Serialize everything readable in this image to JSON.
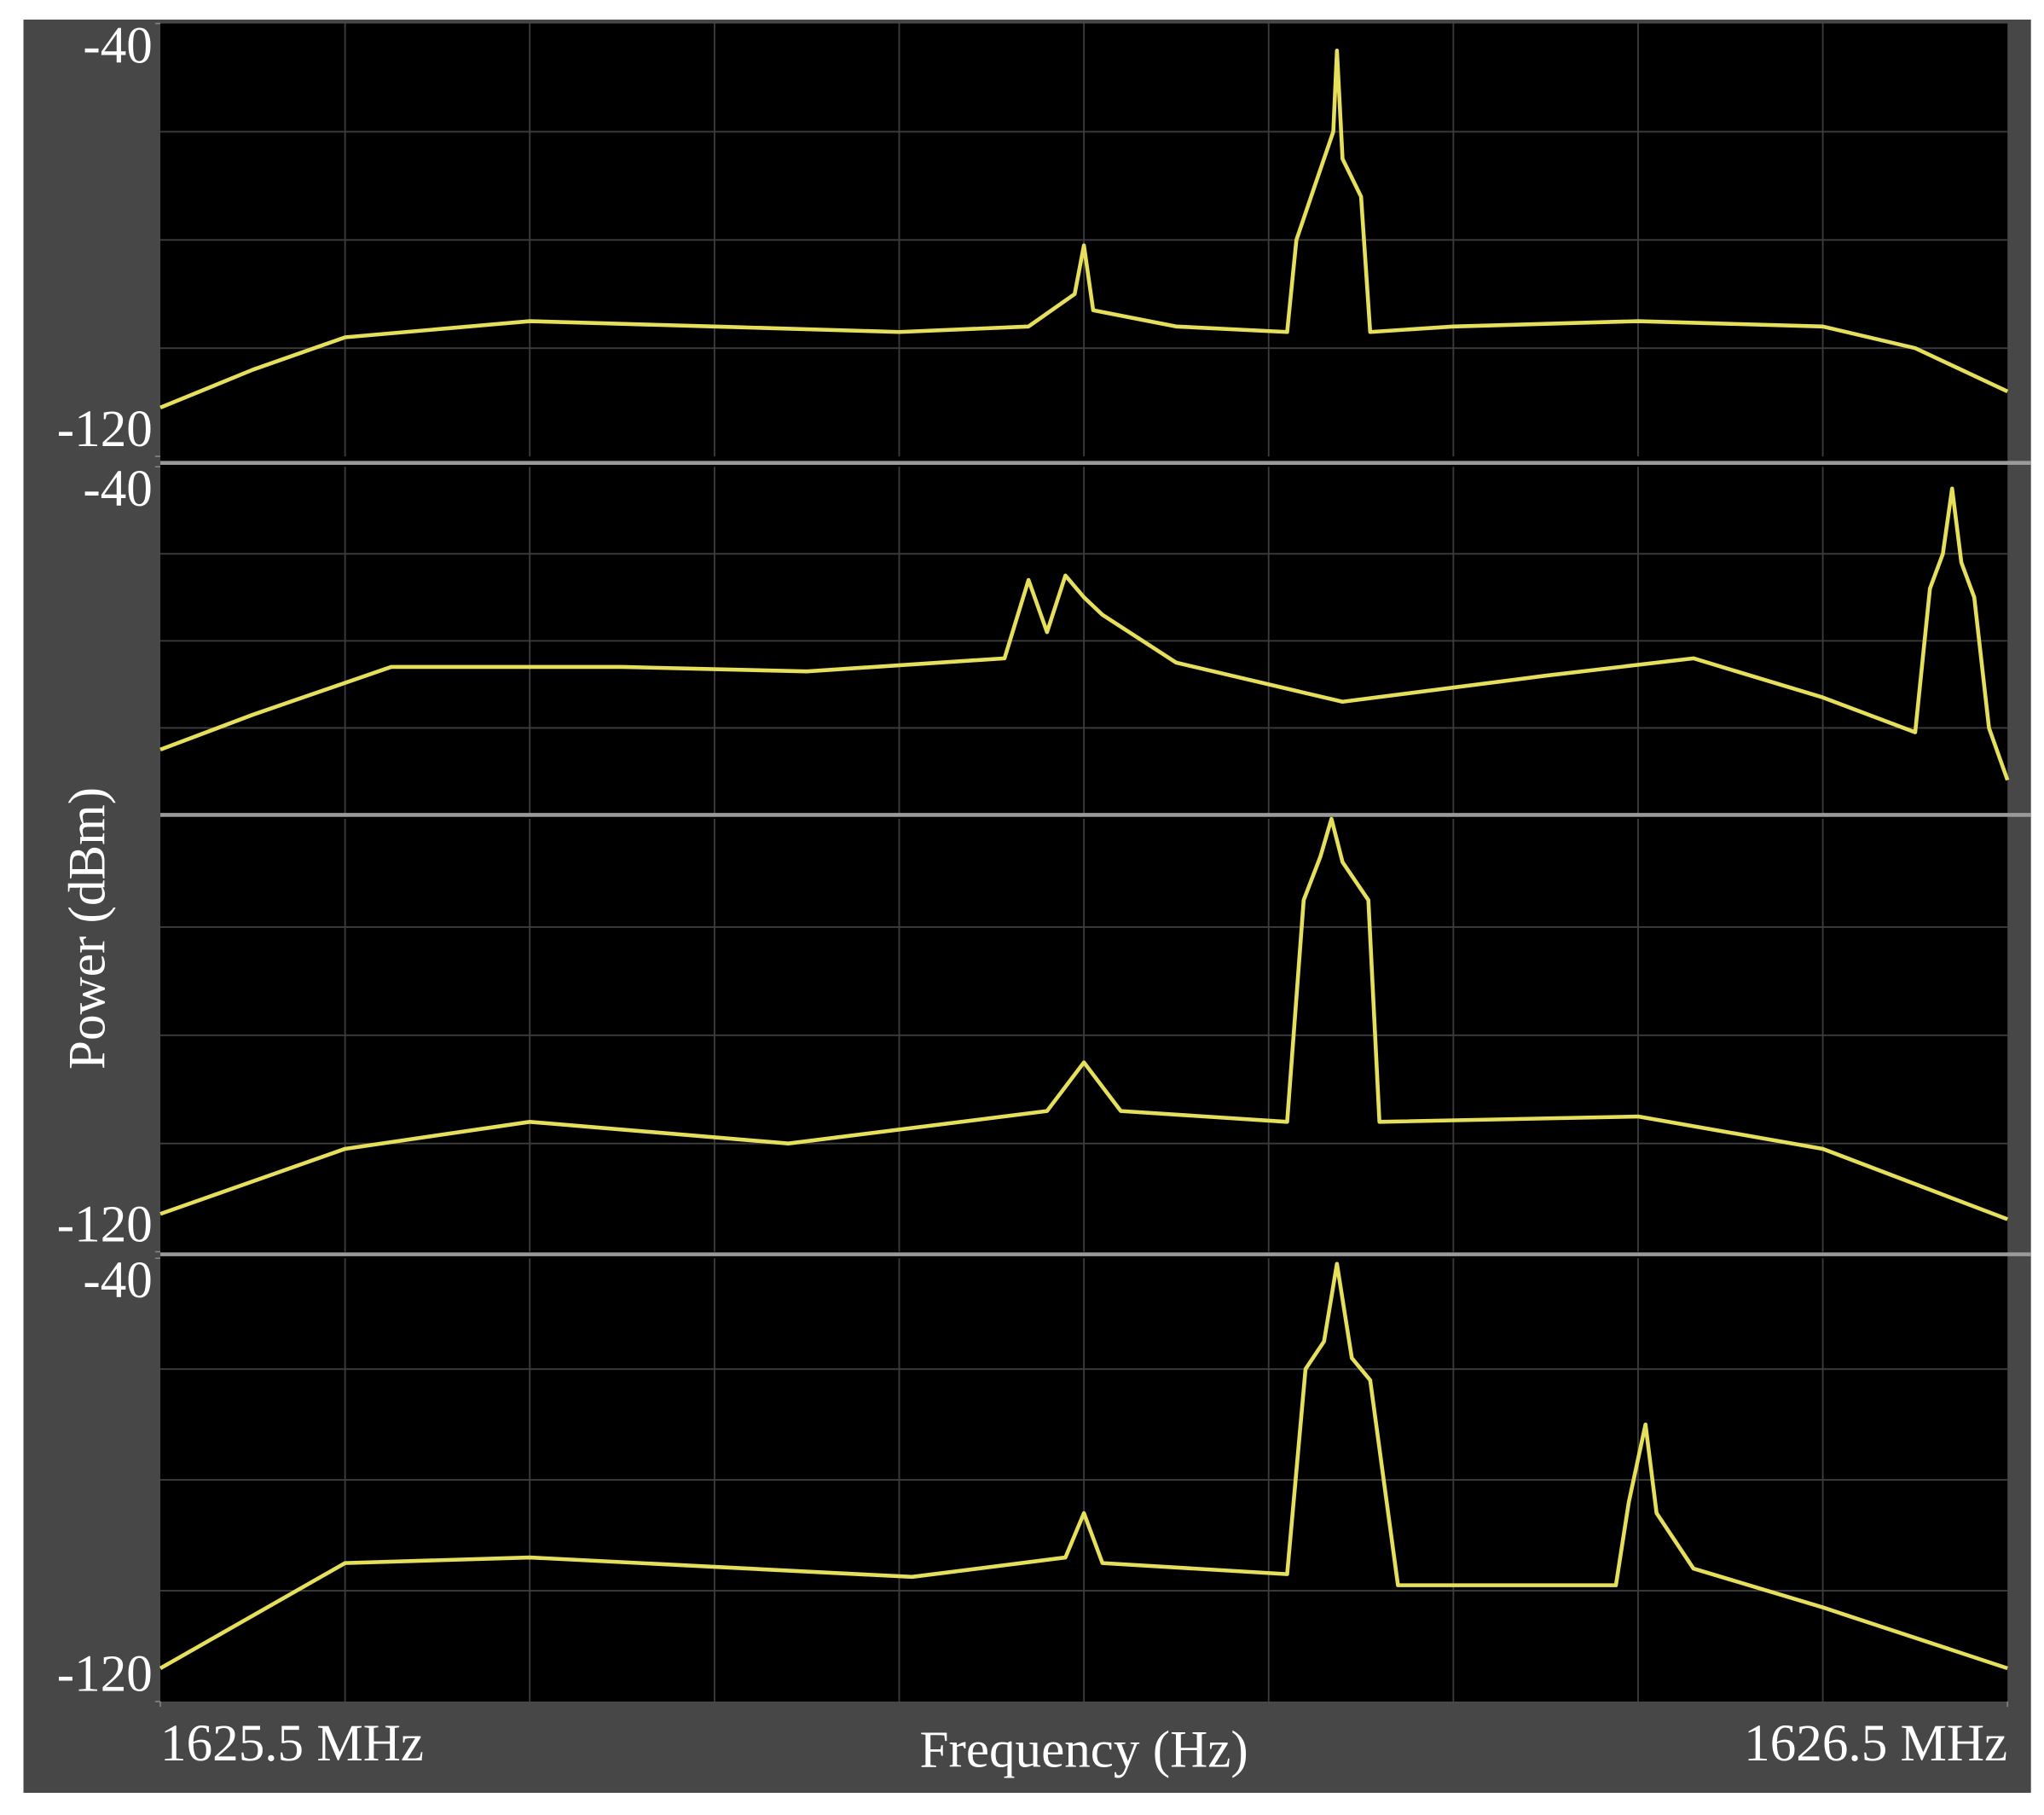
{
  "chart_data": [
    {
      "type": "line",
      "xlim": [
        1625.5,
        1626.5
      ],
      "ylim": [
        -120,
        -40
      ],
      "yticks": [
        -120,
        -40
      ],
      "ylabel": "Power (dBm)",
      "x": [
        1625.5,
        1625.55,
        1625.6,
        1625.7,
        1625.8,
        1625.9,
        1625.97,
        1625.995,
        1626.0,
        1626.005,
        1626.05,
        1626.11,
        1626.115,
        1626.125,
        1626.135,
        1626.137,
        1626.14,
        1626.15,
        1626.155,
        1626.2,
        1626.3,
        1626.4,
        1626.45,
        1626.5
      ],
      "series": [
        {
          "color": "#e6df5c",
          "values": [
            -111,
            -104,
            -98,
            -95,
            -96,
            -97,
            -96,
            -90,
            -81,
            -93,
            -96,
            -97,
            -80,
            -70,
            -60,
            -45,
            -65,
            -72,
            -97,
            -96,
            -95,
            -96,
            -100,
            -108
          ]
        }
      ]
    },
    {
      "type": "line",
      "xlim": [
        1625.5,
        1626.5
      ],
      "ylim": [
        -120,
        -40
      ],
      "yticks": [
        -40
      ],
      "x": [
        1625.5,
        1625.55,
        1625.625,
        1625.75,
        1625.85,
        1625.957,
        1625.97,
        1625.98,
        1625.99,
        1626.0,
        1626.01,
        1626.05,
        1626.14,
        1626.25,
        1626.33,
        1626.4,
        1626.45,
        1626.458,
        1626.465,
        1626.47,
        1626.475,
        1626.482,
        1626.49,
        1626.5
      ],
      "series": [
        {
          "color": "#e6df5c",
          "values": [
            -105,
            -97,
            -86,
            -86,
            -87,
            -84,
            -66,
            -78,
            -65,
            -70,
            -74,
            -85,
            -94,
            -88,
            -84,
            -93,
            -101,
            -68,
            -60,
            -45,
            -62,
            -70,
            -100,
            -112
          ]
        }
      ]
    },
    {
      "type": "line",
      "xlim": [
        1625.5,
        1626.5
      ],
      "ylim": [
        -120,
        -40
      ],
      "yticks": [
        -120
      ],
      "x": [
        1625.5,
        1625.6,
        1625.7,
        1625.84,
        1625.98,
        1626.0,
        1626.02,
        1626.11,
        1626.119,
        1626.128,
        1626.134,
        1626.14,
        1626.154,
        1626.16,
        1626.3,
        1626.4,
        1626.5
      ],
      "series": [
        {
          "color": "#e6df5c",
          "values": [
            -113,
            -101,
            -96,
            -100,
            -94,
            -85,
            -94,
            -96,
            -55,
            -47,
            -40,
            -48,
            -55,
            -96,
            -95,
            -101,
            -114
          ]
        }
      ]
    },
    {
      "type": "line",
      "xlim": [
        1625.5,
        1626.5
      ],
      "ylim": [
        -120,
        -40
      ],
      "yticks": [
        -120,
        -40
      ],
      "xticks": [
        {
          "value": 1625.5,
          "label": "1625.5 MHz"
        },
        {
          "value": 1626.5,
          "label": "1626.5 MHz"
        }
      ],
      "xlabel": "Frequency (Hz)",
      "x": [
        1625.5,
        1625.6,
        1625.7,
        1625.907,
        1625.99,
        1626.0,
        1626.01,
        1626.11,
        1626.12,
        1626.13,
        1626.137,
        1626.145,
        1626.155,
        1626.17,
        1626.288,
        1626.295,
        1626.304,
        1626.31,
        1626.33,
        1626.4,
        1626.5
      ],
      "series": [
        {
          "color": "#e6df5c",
          "values": [
            -114,
            -95,
            -94,
            -97.5,
            -94,
            -86,
            -95,
            -97,
            -60,
            -55,
            -41,
            -58,
            -62,
            -99,
            -99,
            -84,
            -70,
            -86,
            -96,
            -103,
            -114
          ]
        }
      ]
    }
  ]
}
